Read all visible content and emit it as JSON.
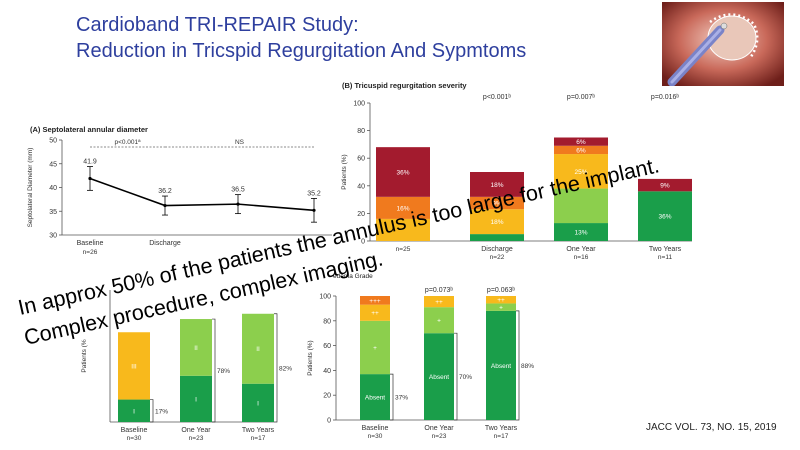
{
  "slide": {
    "title_line1": "Cardioband TRI-REPAIR Study:",
    "title_line2": "Reduction in Tricspid Regurgitation And Sypmtoms",
    "overlay_line1": "In approx 50% of the patients the annulus is too large for the implant.",
    "overlay_line2": "Complex procedure, complex imaging.",
    "citation": "JACC VOL. 73, NO. 15, 2019",
    "photo_alt": "cardioband-implant-photo"
  },
  "chart_data": [
    {
      "id": "A",
      "type": "line",
      "title": "(A) Septolateral annular diameter",
      "ylabel": "Septolateral Diameter (mm)",
      "ylim": [
        30,
        50
      ],
      "yticks": [
        30,
        35,
        40,
        45,
        50
      ],
      "categories": [
        "Baseline",
        "Discharge",
        "",
        ""
      ],
      "category_sublabels": [
        "n=26",
        "",
        "",
        ""
      ],
      "values": [
        41.9,
        36.2,
        36.5,
        35.2
      ],
      "value_labels": [
        "41.9",
        "36.2",
        "36.5",
        "35.2"
      ],
      "errors": [
        2.5,
        2.0,
        2.0,
        2.5
      ],
      "annotations": [
        "p<0.001ª",
        "NS"
      ]
    },
    {
      "id": "B",
      "type": "bar",
      "stacked": true,
      "title": "(B) Tricuspid regurgitation severity",
      "ylabel": "Patients (%)",
      "ylim": [
        0,
        100
      ],
      "yticks": [
        0,
        20,
        40,
        60,
        80,
        100
      ],
      "categories": [
        "",
        "Discharge",
        "One Year",
        "Two Years"
      ],
      "category_sublabels": [
        "n=25",
        "n=22",
        "n=16",
        "n=11"
      ],
      "pvalues": [
        "",
        "p<0.001ᵇ",
        "p=0.007ᵇ",
        "p=0.016ᵇ"
      ],
      "colors": [
        "#1a9e4a",
        "#8ccf4d",
        "#f8b91c",
        "#f07a1e",
        "#a31b2e"
      ],
      "series": [
        {
          "name": "Green",
          "values": [
            0,
            5,
            13,
            36
          ],
          "labels": [
            "",
            "",
            "13%",
            "36%"
          ]
        },
        {
          "name": "Light green",
          "values": [
            0,
            0,
            25,
            0
          ],
          "labels": [
            "",
            "",
            "",
            ""
          ]
        },
        {
          "name": "Yellow",
          "values": [
            16,
            18,
            25,
            0
          ],
          "labels": [
            "",
            "18%",
            "25%",
            ""
          ]
        },
        {
          "name": "Orange",
          "values": [
            16,
            9,
            6,
            0
          ],
          "labels": [
            "16%",
            "9%",
            "6%",
            ""
          ]
        },
        {
          "name": "Red",
          "values": [
            36,
            18,
            6,
            9
          ],
          "labels": [
            "36%",
            "18%",
            "6%",
            "9%"
          ]
        }
      ]
    },
    {
      "id": "C",
      "type": "bar",
      "stacked": true,
      "title": "",
      "ylabel": "Patients (%",
      "categories": [
        "Baseline",
        "One Year",
        "Two Years"
      ],
      "category_sublabels": [
        "n=30",
        "n=23",
        "n=17"
      ],
      "colors": [
        "#1a9e4a",
        "#8ccf4d",
        "#f8b91c"
      ],
      "segment_labels": [
        "I",
        "II",
        "III"
      ],
      "series": [
        {
          "name": "I",
          "values": [
            17,
            35,
            29
          ]
        },
        {
          "name": "II",
          "values": [
            0,
            43,
            53
          ]
        },
        {
          "name": "III",
          "values": [
            51,
            0,
            0
          ]
        }
      ],
      "bracket_labels": [
        "17%",
        "78%",
        "82%"
      ]
    },
    {
      "id": "D",
      "type": "bar",
      "stacked": true,
      "title": "edema Grade",
      "ylabel": "Patients (%)",
      "ylim": [
        0,
        100
      ],
      "yticks": [
        0,
        20,
        40,
        60,
        80,
        100
      ],
      "categories": [
        "Baseline",
        "One Year",
        "Two Years"
      ],
      "category_sublabels": [
        "n=30",
        "n=23",
        "n=17"
      ],
      "pvalues": [
        "",
        "p=0.073ᵇ",
        "p=0.063ᵇ"
      ],
      "colors": [
        "#1a9e4a",
        "#8ccf4d",
        "#f8b91c",
        "#f07a1e"
      ],
      "segment_symbols": [
        "Absent",
        "+",
        "++",
        "+++"
      ],
      "series": [
        {
          "name": "Absent",
          "values": [
            37,
            70,
            88
          ]
        },
        {
          "name": "+",
          "values": [
            43,
            21,
            6
          ]
        },
        {
          "name": "++",
          "values": [
            13,
            9,
            6
          ]
        },
        {
          "name": "+++",
          "values": [
            7,
            0,
            0
          ]
        }
      ],
      "bracket_labels": [
        "37%",
        "70%",
        "88%"
      ]
    }
  ]
}
